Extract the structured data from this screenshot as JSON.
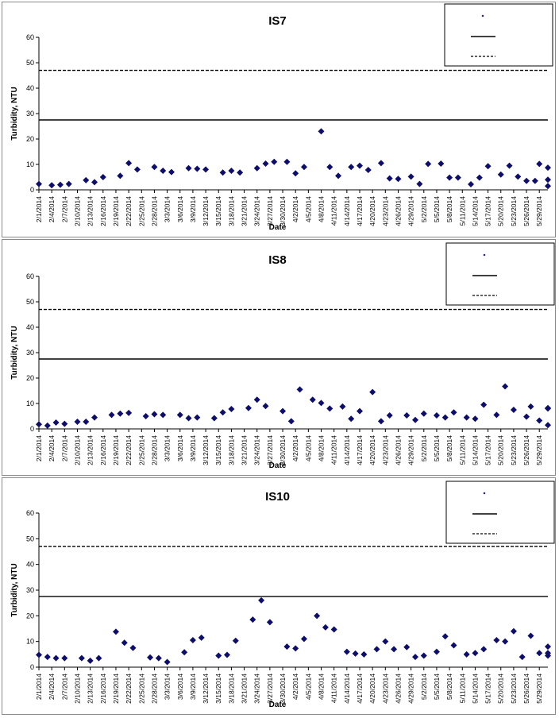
{
  "colors": {
    "marker": "#0d0d6b",
    "line": "#000000",
    "panel_border": "#8a8a8a"
  },
  "chart_data": [
    {
      "type": "scatter",
      "title": "IS7",
      "xlabel": "Date",
      "ylabel": "Turbidity, NTU",
      "ylim": [
        0,
        60
      ],
      "yticks": [
        0,
        10,
        20,
        30,
        40,
        50,
        60
      ],
      "xlim": [
        "2014-02-01",
        "2014-05-31"
      ],
      "xticks": [
        "2/1/2014",
        "2/4/2014",
        "2/7/2014",
        "2/10/2014",
        "2/13/2014",
        "2/16/2014",
        "2/19/2014",
        "2/22/2014",
        "2/25/2014",
        "2/28/2014",
        "3/3/2014",
        "3/6/2014",
        "3/9/2014",
        "3/12/2014",
        "3/15/2014",
        "3/18/2014",
        "3/21/2014",
        "3/24/2014",
        "3/27/2014",
        "3/30/2014",
        "4/2/2014",
        "4/5/2014",
        "4/8/2014",
        "4/11/2014",
        "4/14/2014",
        "4/17/2014",
        "4/20/2014",
        "4/23/2014",
        "4/26/2014",
        "4/29/2014",
        "5/2/2014",
        "5/5/2014",
        "5/8/2014",
        "5/11/2014",
        "5/14/2014",
        "5/17/2014",
        "5/20/2014",
        "5/23/2014",
        "5/26/2014",
        "5/29/2014"
      ],
      "legend_position": "top-right",
      "series": [
        {
          "style": "marker",
          "points": [
            [
              "2014-02-01",
              2.3
            ],
            [
              "2014-02-04",
              1.8
            ],
            [
              "2014-02-06",
              2.0
            ],
            [
              "2014-02-08",
              2.3
            ],
            [
              "2014-02-12",
              3.8
            ],
            [
              "2014-02-14",
              3.0
            ],
            [
              "2014-02-16",
              5.0
            ],
            [
              "2014-02-20",
              5.5
            ],
            [
              "2014-02-22",
              10.5
            ],
            [
              "2014-02-24",
              8.0
            ],
            [
              "2014-02-28",
              9.0
            ],
            [
              "2014-03-02",
              7.5
            ],
            [
              "2014-03-04",
              7.0
            ],
            [
              "2014-03-08",
              8.5
            ],
            [
              "2014-03-10",
              8.3
            ],
            [
              "2014-03-12",
              8.0
            ],
            [
              "2014-03-16",
              6.8
            ],
            [
              "2014-03-18",
              7.5
            ],
            [
              "2014-03-20",
              6.8
            ],
            [
              "2014-03-24",
              8.5
            ],
            [
              "2014-03-26",
              10.3
            ],
            [
              "2014-03-28",
              11.0
            ],
            [
              "2014-03-31",
              11.0
            ],
            [
              "2014-04-02",
              6.5
            ],
            [
              "2014-04-04",
              9.0
            ],
            [
              "2014-04-08",
              23.0
            ],
            [
              "2014-04-10",
              9.0
            ],
            [
              "2014-04-12",
              5.5
            ],
            [
              "2014-04-15",
              9.0
            ],
            [
              "2014-04-17",
              9.5
            ],
            [
              "2014-04-19",
              7.8
            ],
            [
              "2014-04-22",
              10.5
            ],
            [
              "2014-04-24",
              4.5
            ],
            [
              "2014-04-26",
              4.3
            ],
            [
              "2014-04-29",
              5.2
            ],
            [
              "2014-05-01",
              2.3
            ],
            [
              "2014-05-03",
              10.2
            ],
            [
              "2014-05-06",
              10.3
            ],
            [
              "2014-05-08",
              4.8
            ],
            [
              "2014-05-10",
              4.8
            ],
            [
              "2014-05-13",
              2.2
            ],
            [
              "2014-05-15",
              4.8
            ],
            [
              "2014-05-17",
              9.3
            ],
            [
              "2014-05-20",
              6.0
            ],
            [
              "2014-05-22",
              9.5
            ],
            [
              "2014-05-24",
              5.2
            ],
            [
              "2014-05-26",
              3.5
            ],
            [
              "2014-05-28",
              3.5
            ],
            [
              "2014-05-29",
              10.2
            ],
            [
              "2014-05-31",
              4.0
            ],
            [
              "2014-05-31",
              8.7
            ],
            [
              "2014-05-31",
              1.5
            ]
          ]
        },
        {
          "style": "solid-line",
          "y": 27.5
        },
        {
          "style": "dashed-line",
          "y": 47
        }
      ]
    },
    {
      "type": "scatter",
      "title": "IS8",
      "xlabel": "Date",
      "ylabel": "Turbidity, NTU",
      "ylim": [
        0,
        60
      ],
      "yticks": [
        0,
        10,
        20,
        30,
        40,
        50,
        60
      ],
      "xlim": [
        "2014-02-01",
        "2014-05-31"
      ],
      "xticks": [
        "2/1/2014",
        "2/4/2014",
        "2/7/2014",
        "2/10/2014",
        "2/13/2014",
        "2/16/2014",
        "2/19/2014",
        "2/22/2014",
        "2/25/2014",
        "2/28/2014",
        "3/3/2014",
        "3/6/2014",
        "3/9/2014",
        "3/12/2014",
        "3/15/2014",
        "3/18/2014",
        "3/21/2014",
        "3/24/2014",
        "3/27/2014",
        "3/30/2014",
        "4/2/2014",
        "4/5/2014",
        "4/8/2014",
        "4/11/2014",
        "4/14/2014",
        "4/17/2014",
        "4/20/2014",
        "4/23/2014",
        "4/26/2014",
        "4/29/2014",
        "5/2/2014",
        "5/5/2014",
        "5/8/2014",
        "5/11/2014",
        "5/14/2014",
        "5/17/2014",
        "5/20/2014",
        "5/23/2014",
        "5/26/2014",
        "5/29/2014"
      ],
      "legend_position": "top-right",
      "series": [
        {
          "style": "marker",
          "points": [
            [
              "2014-02-01",
              1.8
            ],
            [
              "2014-02-03",
              1.3
            ],
            [
              "2014-02-05",
              2.5
            ],
            [
              "2014-02-07",
              2.0
            ],
            [
              "2014-02-10",
              2.8
            ],
            [
              "2014-02-12",
              2.8
            ],
            [
              "2014-02-14",
              4.5
            ],
            [
              "2014-02-18",
              5.5
            ],
            [
              "2014-02-20",
              6.0
            ],
            [
              "2014-02-22",
              6.3
            ],
            [
              "2014-02-26",
              5.0
            ],
            [
              "2014-02-28",
              5.8
            ],
            [
              "2014-03-02",
              5.5
            ],
            [
              "2014-03-06",
              5.5
            ],
            [
              "2014-03-08",
              4.2
            ],
            [
              "2014-03-10",
              4.5
            ],
            [
              "2014-03-14",
              4.2
            ],
            [
              "2014-03-16",
              6.5
            ],
            [
              "2014-03-18",
              7.8
            ],
            [
              "2014-03-22",
              8.2
            ],
            [
              "2014-03-24",
              11.5
            ],
            [
              "2014-03-26",
              9.0
            ],
            [
              "2014-03-30",
              7.0
            ],
            [
              "2014-04-01",
              3.0
            ],
            [
              "2014-04-03",
              15.5
            ],
            [
              "2014-04-06",
              11.5
            ],
            [
              "2014-04-08",
              10.2
            ],
            [
              "2014-04-10",
              8.0
            ],
            [
              "2014-04-13",
              8.8
            ],
            [
              "2014-04-15",
              4.0
            ],
            [
              "2014-04-17",
              7.0
            ],
            [
              "2014-04-20",
              14.5
            ],
            [
              "2014-04-22",
              3.0
            ],
            [
              "2014-04-24",
              5.3
            ],
            [
              "2014-04-28",
              5.3
            ],
            [
              "2014-04-30",
              3.5
            ],
            [
              "2014-05-02",
              6.0
            ],
            [
              "2014-05-05",
              5.3
            ],
            [
              "2014-05-07",
              4.5
            ],
            [
              "2014-05-09",
              6.5
            ],
            [
              "2014-05-12",
              4.5
            ],
            [
              "2014-05-14",
              4.0
            ],
            [
              "2014-05-16",
              9.5
            ],
            [
              "2014-05-19",
              5.5
            ],
            [
              "2014-05-21",
              16.7
            ],
            [
              "2014-05-23",
              7.5
            ],
            [
              "2014-05-26",
              4.8
            ],
            [
              "2014-05-27",
              8.8
            ],
            [
              "2014-05-29",
              3.3
            ],
            [
              "2014-05-31",
              8.0
            ],
            [
              "2014-05-31",
              8.2
            ],
            [
              "2014-05-31",
              1.5
            ]
          ]
        },
        {
          "style": "solid-line",
          "y": 27.5
        },
        {
          "style": "dashed-line",
          "y": 47
        }
      ]
    },
    {
      "type": "scatter",
      "title": "IS10",
      "xlabel": "Date",
      "ylabel": "Turbidity, NTU",
      "ylim": [
        0,
        60
      ],
      "yticks": [
        0,
        10,
        20,
        30,
        40,
        50,
        60
      ],
      "xlim": [
        "2014-02-01",
        "2014-05-31"
      ],
      "xticks": [
        "2/1/2014",
        "2/4/2014",
        "2/7/2014",
        "2/10/2014",
        "2/13/2014",
        "2/16/2014",
        "2/19/2014",
        "2/22/2014",
        "2/25/2014",
        "2/28/2014",
        "3/3/2014",
        "3/6/2014",
        "3/9/2014",
        "3/12/2014",
        "3/15/2014",
        "3/18/2014",
        "3/21/2014",
        "3/24/2014",
        "3/27/2014",
        "3/30/2014",
        "4/2/2014",
        "4/5/2014",
        "4/8/2014",
        "4/11/2014",
        "4/14/2014",
        "4/17/2014",
        "4/20/2014",
        "4/23/2014",
        "4/26/2014",
        "4/29/2014",
        "5/2/2014",
        "5/5/2014",
        "5/8/2014",
        "5/11/2014",
        "5/14/2014",
        "5/17/2014",
        "5/20/2014",
        "5/23/2014",
        "5/26/2014",
        "5/29/2014"
      ],
      "legend_position": "top-right",
      "series": [
        {
          "style": "marker",
          "points": [
            [
              "2014-02-01",
              4.8
            ],
            [
              "2014-02-03",
              4.0
            ],
            [
              "2014-02-05",
              3.5
            ],
            [
              "2014-02-07",
              3.5
            ],
            [
              "2014-02-11",
              3.5
            ],
            [
              "2014-02-13",
              2.5
            ],
            [
              "2014-02-15",
              3.5
            ],
            [
              "2014-02-19",
              13.8
            ],
            [
              "2014-02-21",
              9.5
            ],
            [
              "2014-02-23",
              7.5
            ],
            [
              "2014-02-27",
              3.8
            ],
            [
              "2014-03-01",
              3.5
            ],
            [
              "2014-03-03",
              2.0
            ],
            [
              "2014-03-07",
              5.8
            ],
            [
              "2014-03-09",
              10.5
            ],
            [
              "2014-03-11",
              11.5
            ],
            [
              "2014-03-15",
              4.5
            ],
            [
              "2014-03-17",
              4.8
            ],
            [
              "2014-03-19",
              10.3
            ],
            [
              "2014-03-23",
              18.5
            ],
            [
              "2014-03-25",
              26.0
            ],
            [
              "2014-03-27",
              17.5
            ],
            [
              "2014-03-31",
              8.0
            ],
            [
              "2014-04-02",
              7.3
            ],
            [
              "2014-04-04",
              11.0
            ],
            [
              "2014-04-07",
              20.0
            ],
            [
              "2014-04-09",
              15.5
            ],
            [
              "2014-04-11",
              14.7
            ],
            [
              "2014-04-14",
              6.0
            ],
            [
              "2014-04-16",
              5.3
            ],
            [
              "2014-04-18",
              5.0
            ],
            [
              "2014-04-21",
              7.0
            ],
            [
              "2014-04-23",
              10.0
            ],
            [
              "2014-04-25",
              7.0
            ],
            [
              "2014-04-28",
              7.8
            ],
            [
              "2014-04-30",
              4.0
            ],
            [
              "2014-05-02",
              4.5
            ],
            [
              "2014-05-05",
              6.0
            ],
            [
              "2014-05-07",
              12.0
            ],
            [
              "2014-05-09",
              8.5
            ],
            [
              "2014-05-12",
              5.0
            ],
            [
              "2014-05-14",
              5.5
            ],
            [
              "2014-05-16",
              7.0
            ],
            [
              "2014-05-19",
              10.5
            ],
            [
              "2014-05-21",
              10.0
            ],
            [
              "2014-05-23",
              14.0
            ],
            [
              "2014-05-25",
              4.0
            ],
            [
              "2014-05-27",
              12.2
            ],
            [
              "2014-05-29",
              5.5
            ],
            [
              "2014-05-31",
              8.0
            ],
            [
              "2014-05-31",
              4.5
            ],
            [
              "2014-05-31",
              5.5
            ]
          ]
        },
        {
          "style": "solid-line",
          "y": 27.5
        },
        {
          "style": "dashed-line",
          "y": 47
        }
      ]
    }
  ]
}
